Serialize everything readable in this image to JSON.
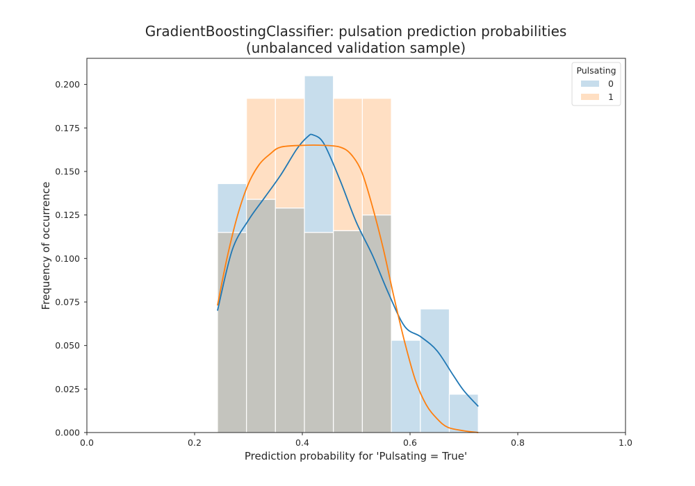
{
  "chart_data": {
    "type": "bar",
    "title_line1": "GradientBoostingClassifier: pulsation prediction probabilities",
    "title_line2": "(unbalanced validation sample)",
    "xlabel": "Prediction probability for 'Pulsating = True'",
    "ylabel": "Frequency of occurrence",
    "xlim": [
      0.0,
      1.0
    ],
    "ylim": [
      0.0,
      0.215
    ],
    "xticks": [
      "0.0",
      "0.2",
      "0.4",
      "0.6",
      "0.8",
      "1.0"
    ],
    "yticks": [
      "0.000",
      "0.025",
      "0.050",
      "0.075",
      "0.100",
      "0.125",
      "0.150",
      "0.175",
      "0.200"
    ],
    "grid": false,
    "legend": {
      "title": "Pulsating",
      "placement": "top-right",
      "entries": [
        "0",
        "1"
      ]
    },
    "bin_edges": [
      0.2425,
      0.2963,
      0.3501,
      0.4039,
      0.4577,
      0.5115,
      0.5653,
      0.6191,
      0.6729,
      0.7267
    ],
    "series": [
      {
        "name": "0",
        "color": "#1f77b4",
        "values": [
          0.143,
          0.134,
          0.129,
          0.205,
          0.116,
          0.125,
          0.053,
          0.071,
          0.022
        ],
        "kde_x": [
          0.2425,
          0.27,
          0.3,
          0.33,
          0.36,
          0.39,
          0.41,
          0.42,
          0.44,
          0.47,
          0.5,
          0.53,
          0.56,
          0.59,
          0.62,
          0.65,
          0.68,
          0.7,
          0.7267
        ],
        "kde_y": [
          0.07,
          0.105,
          0.122,
          0.135,
          0.148,
          0.163,
          0.17,
          0.171,
          0.166,
          0.145,
          0.121,
          0.102,
          0.08,
          0.061,
          0.055,
          0.047,
          0.033,
          0.024,
          0.015
        ]
      },
      {
        "name": "1",
        "color": "#ff7f0e",
        "values": [
          0.115,
          0.192,
          0.192,
          0.115,
          0.192,
          0.192,
          0.0,
          0.0,
          0.0
        ],
        "kde_x": [
          0.2425,
          0.26,
          0.28,
          0.3,
          0.32,
          0.34,
          0.36,
          0.4,
          0.44,
          0.47,
          0.49,
          0.51,
          0.53,
          0.55,
          0.57,
          0.59,
          0.61,
          0.63,
          0.65,
          0.67,
          0.7,
          0.7267
        ],
        "kde_y": [
          0.073,
          0.1,
          0.125,
          0.143,
          0.154,
          0.16,
          0.164,
          0.165,
          0.165,
          0.164,
          0.16,
          0.15,
          0.13,
          0.106,
          0.078,
          0.052,
          0.03,
          0.016,
          0.008,
          0.003,
          0.001,
          0.0
        ]
      }
    ],
    "overlap_color": "#c4c4be"
  }
}
